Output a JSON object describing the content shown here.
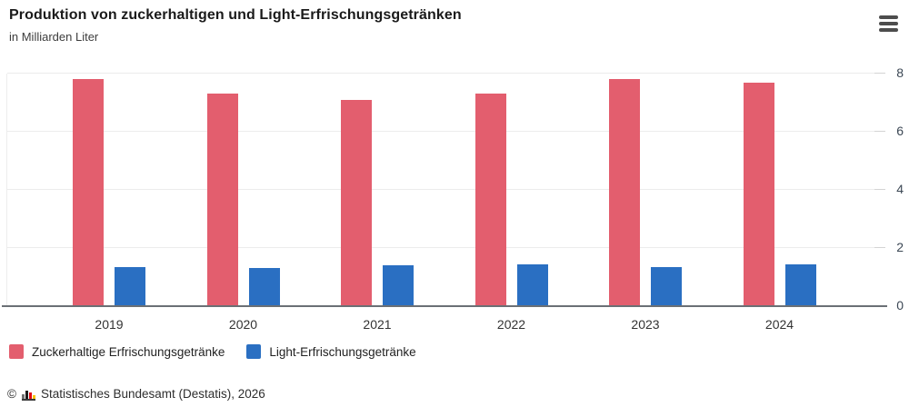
{
  "header": {
    "title": "Produktion von zuckerhaltigen und Light-Erfrischungsgetränken",
    "subtitle": "in Milliarden Liter",
    "menu_icon": "hamburger-menu"
  },
  "chart_data": {
    "type": "bar",
    "title": "Produktion von zuckerhaltigen und Light-Erfrischungsgetränken",
    "subtitle": "in Milliarden Liter",
    "categories": [
      "2019",
      "2020",
      "2021",
      "2022",
      "2023",
      "2024"
    ],
    "series": [
      {
        "name": "Zuckerhaltige Erfrischungsgetränke",
        "key": "zuckerhaltige",
        "color": "#e35e6e",
        "values": [
          7.8,
          7.3,
          7.1,
          7.3,
          7.8,
          7.7
        ]
      },
      {
        "name": "Light-Erfrischungsgetränke",
        "key": "light",
        "color": "#2a6fc2",
        "values": [
          1.35,
          1.3,
          1.4,
          1.45,
          1.35,
          1.45
        ]
      }
    ],
    "xlabel": "",
    "ylabel": "",
    "ylim": [
      0,
      8
    ],
    "yticks": [
      0,
      2,
      4,
      6,
      8
    ],
    "y_axis_side": "right",
    "grid": true,
    "legend_position": "bottom"
  },
  "footer": {
    "copyright": "©",
    "source": "Statistisches Bundesamt (Destatis), 2026",
    "logo_icon": "destatis-bar-chart-icon",
    "logo_colors": [
      "#707070",
      "#1c1c1c",
      "#e30613",
      "#f8c200"
    ]
  }
}
